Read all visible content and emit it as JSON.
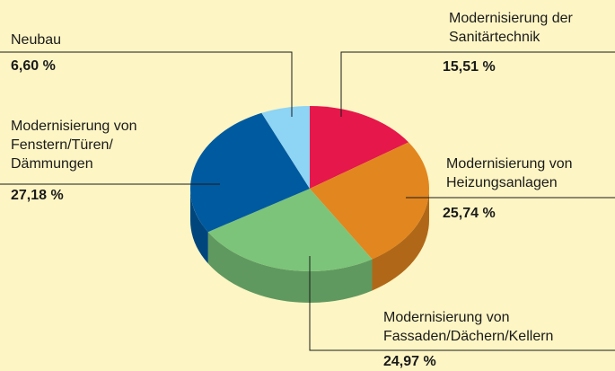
{
  "chart_data": {
    "type": "pie",
    "categories": [
      "Modernisierung der\nSanitärtechnik",
      "Modernisierung von\nHeizungsanlagen",
      "Modernisierung von\nFassaden/Dächern/Kellern",
      "Modernisierung von\nFenstern/Türen/\nDämmungen",
      "Neubau"
    ],
    "values": [
      15.51,
      25.74,
      24.97,
      27.18,
      6.6
    ],
    "value_labels": [
      "15,51 %",
      "25,74 %",
      "24,97 %",
      "27,18 %",
      "6,60 %"
    ],
    "colors": [
      "#e5174b",
      "#e2861f",
      "#7cc47a",
      "#005aa0",
      "#8dd4f5"
    ]
  }
}
